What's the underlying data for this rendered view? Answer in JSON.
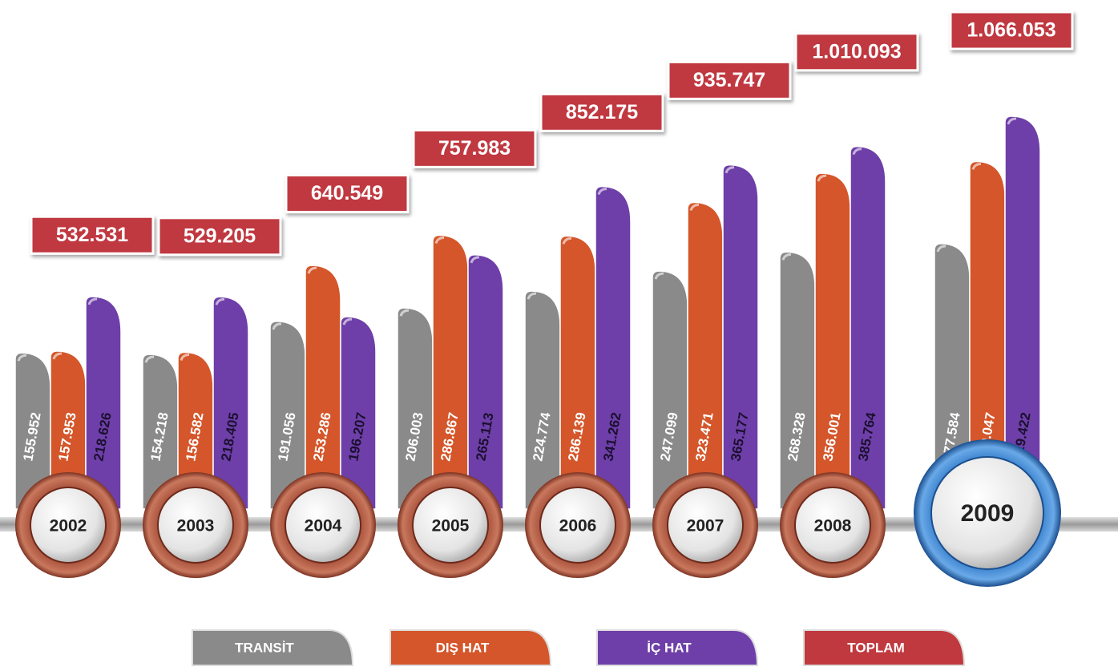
{
  "chart_data": {
    "type": "bar",
    "categories": [
      "2002",
      "2003",
      "2004",
      "2005",
      "2006",
      "2007",
      "2008",
      "2009"
    ],
    "series": [
      {
        "name": "TRANSİT",
        "color": "#8a8a8a",
        "values": [
          155952,
          154218,
          191056,
          206003,
          224774,
          247099,
          268328,
          277584
        ],
        "value_labels": [
          "155.952",
          "154.218",
          "191.056",
          "206.003",
          "224.774",
          "247.099",
          "268.328",
          "277.584"
        ]
      },
      {
        "name": "DIŞ HAT",
        "color": "#d4562a",
        "values": [
          157953,
          156582,
          253286,
          286867,
          286139,
          323471,
          356001,
          369047
        ],
        "value_labels": [
          "157.953",
          "156.582",
          "253.286",
          "286.867",
          "286.139",
          "323.471",
          "356.001",
          "369.047"
        ]
      },
      {
        "name": "İÇ HAT",
        "color": "#6e3fa8",
        "values": [
          218626,
          218405,
          196207,
          265113,
          341262,
          365177,
          385764,
          419422
        ],
        "value_labels": [
          "218.626",
          "218.405",
          "196.207",
          "265.113",
          "341.262",
          "365.177",
          "385.764",
          "419.422"
        ]
      }
    ],
    "totals": {
      "name": "TOPLAM",
      "color": "#c0393f",
      "values": [
        532531,
        529205,
        640549,
        757983,
        852175,
        935747,
        1010093,
        1066053
      ],
      "value_labels": [
        "532.531",
        "529.205",
        "640.549",
        "757.983",
        "852.175",
        "935.747",
        "1.010.093",
        "1.066.053"
      ]
    }
  }
}
